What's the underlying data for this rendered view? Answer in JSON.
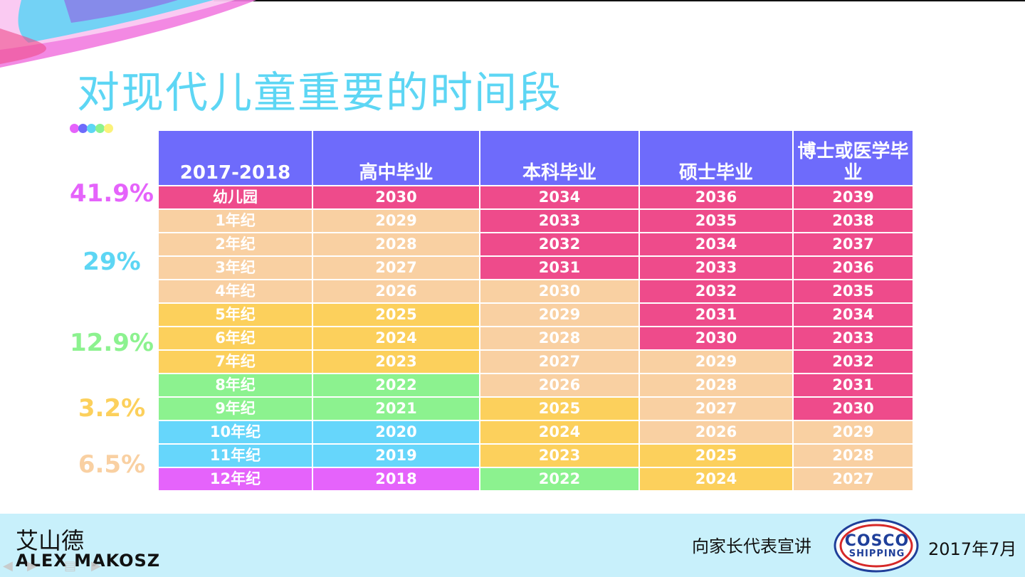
{
  "slide": {
    "title": "对现代儿童重要的时间段"
  },
  "table": {
    "headers": [
      "2017-2018",
      "高中毕业",
      "本科毕业",
      "硕士毕业",
      "博士或医学毕业"
    ],
    "rows": [
      {
        "grade": "幼儿园",
        "cells": [
          "2030",
          "2034",
          "2036",
          "2039"
        ],
        "colors": [
          "pink",
          "pink",
          "pink",
          "pink",
          "pink"
        ]
      },
      {
        "grade": "1年纪",
        "cells": [
          "2029",
          "2033",
          "2035",
          "2038"
        ],
        "colors": [
          "peach",
          "peach",
          "pink",
          "pink",
          "pink"
        ]
      },
      {
        "grade": "2年纪",
        "cells": [
          "2028",
          "2032",
          "2034",
          "2037"
        ],
        "colors": [
          "peach",
          "peach",
          "pink",
          "pink",
          "pink"
        ]
      },
      {
        "grade": "3年纪",
        "cells": [
          "2027",
          "2031",
          "2033",
          "2036"
        ],
        "colors": [
          "peach",
          "peach",
          "pink",
          "pink",
          "pink"
        ]
      },
      {
        "grade": "4年纪",
        "cells": [
          "2026",
          "2030",
          "2032",
          "2035"
        ],
        "colors": [
          "peach",
          "peach",
          "peach",
          "pink",
          "pink"
        ]
      },
      {
        "grade": "5年纪",
        "cells": [
          "2025",
          "2029",
          "2031",
          "2034"
        ],
        "colors": [
          "yellow",
          "yellow",
          "peach",
          "pink",
          "pink"
        ]
      },
      {
        "grade": "6年纪",
        "cells": [
          "2024",
          "2028",
          "2030",
          "2033"
        ],
        "colors": [
          "yellow",
          "yellow",
          "peach",
          "pink",
          "pink"
        ]
      },
      {
        "grade": "7年纪",
        "cells": [
          "2023",
          "2027",
          "2029",
          "2032"
        ],
        "colors": [
          "yellow",
          "yellow",
          "peach",
          "peach",
          "pink"
        ]
      },
      {
        "grade": "8年纪",
        "cells": [
          "2022",
          "2026",
          "2028",
          "2031"
        ],
        "colors": [
          "green",
          "green",
          "peach",
          "peach",
          "pink"
        ]
      },
      {
        "grade": "9年纪",
        "cells": [
          "2021",
          "2025",
          "2027",
          "2030"
        ],
        "colors": [
          "green",
          "green",
          "yellow",
          "peach",
          "pink"
        ]
      },
      {
        "grade": "10年纪",
        "cells": [
          "2020",
          "2024",
          "2026",
          "2029"
        ],
        "colors": [
          "cyan",
          "cyan",
          "yellow",
          "peach",
          "peach"
        ]
      },
      {
        "grade": "11年纪",
        "cells": [
          "2019",
          "2023",
          "2025",
          "2028"
        ],
        "colors": [
          "cyan",
          "cyan",
          "yellow",
          "yellow",
          "peach"
        ]
      },
      {
        "grade": "12年纪",
        "cells": [
          "2018",
          "2022",
          "2024",
          "2027"
        ],
        "colors": [
          "violet",
          "violet",
          "green",
          "yellow",
          "peach"
        ]
      }
    ]
  },
  "percentages": [
    {
      "value": "41.9%",
      "color": "#e563fb"
    },
    {
      "value": "29%",
      "color": "#5dd6f4"
    },
    {
      "value": "12.9%",
      "color": "#8cf28f"
    },
    {
      "value": "3.2%",
      "color": "#fcd05c"
    },
    {
      "value": "6.5%",
      "color": "#f9d0a2"
    }
  ],
  "footer": {
    "author_cn": "艾山德",
    "author_en": "ALEX MAKOSZ",
    "talk": "向家长代表宣讲",
    "logo_line1": "COSCO",
    "logo_line2": "SHIPPING",
    "date": "2017年7月"
  },
  "colors": {
    "header": "#6e6bfb",
    "pink": "#ee4b8b",
    "peach": "#f9d0a2",
    "yellow": "#fcd05c",
    "green": "#8cf28f",
    "cyan": "#66d6fb",
    "violet": "#e563fb",
    "title": "#5dd6f4",
    "footer_bg": "#c8f0fb"
  },
  "icons": {
    "dots": "color-dots-icon",
    "nav": [
      "prev-arrow-icon",
      "next-arrow-icon",
      "menu-icon",
      "forward-icon"
    ]
  }
}
